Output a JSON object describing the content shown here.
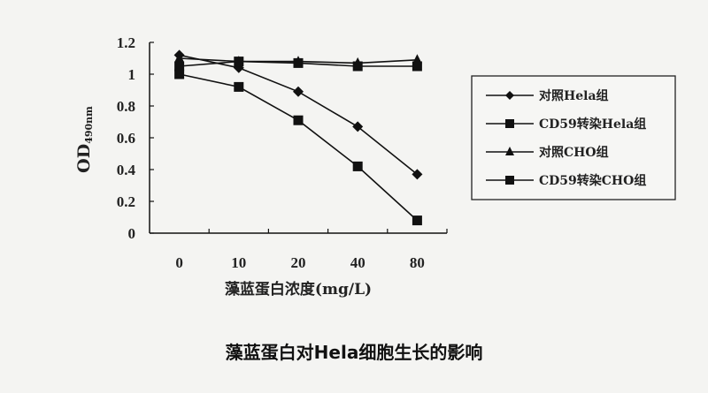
{
  "chart_data": {
    "type": "line",
    "title": "",
    "xlabel": "藻蓝蛋白浓度(mg/L)",
    "ylabel": "OD490nm",
    "ylabel_main": "OD",
    "ylabel_sub": "490nm",
    "categories": [
      "0",
      "10",
      "20",
      "40",
      "80"
    ],
    "yticks": [
      "0",
      "0.2",
      "0.4",
      "0.6",
      "0.8",
      "1",
      "1.2"
    ],
    "ylim": [
      0,
      1.2
    ],
    "grid": false,
    "legend_position": "right",
    "series": [
      {
        "name": "对照Hela组",
        "marker": "diamond",
        "values": [
          1.12,
          1.04,
          0.89,
          0.67,
          0.37
        ]
      },
      {
        "name": "CD59转染Hela组",
        "marker": "square",
        "values": [
          1.0,
          0.92,
          0.71,
          0.42,
          0.08
        ]
      },
      {
        "name": "对照CHO组",
        "marker": "triangle",
        "values": [
          1.1,
          1.08,
          1.08,
          1.07,
          1.09
        ]
      },
      {
        "name": "CD59转染CHO组",
        "marker": "square",
        "values": [
          1.05,
          1.08,
          1.07,
          1.05,
          1.05
        ]
      }
    ]
  },
  "caption": "藻蓝蛋白对Hela细胞生长的影响"
}
